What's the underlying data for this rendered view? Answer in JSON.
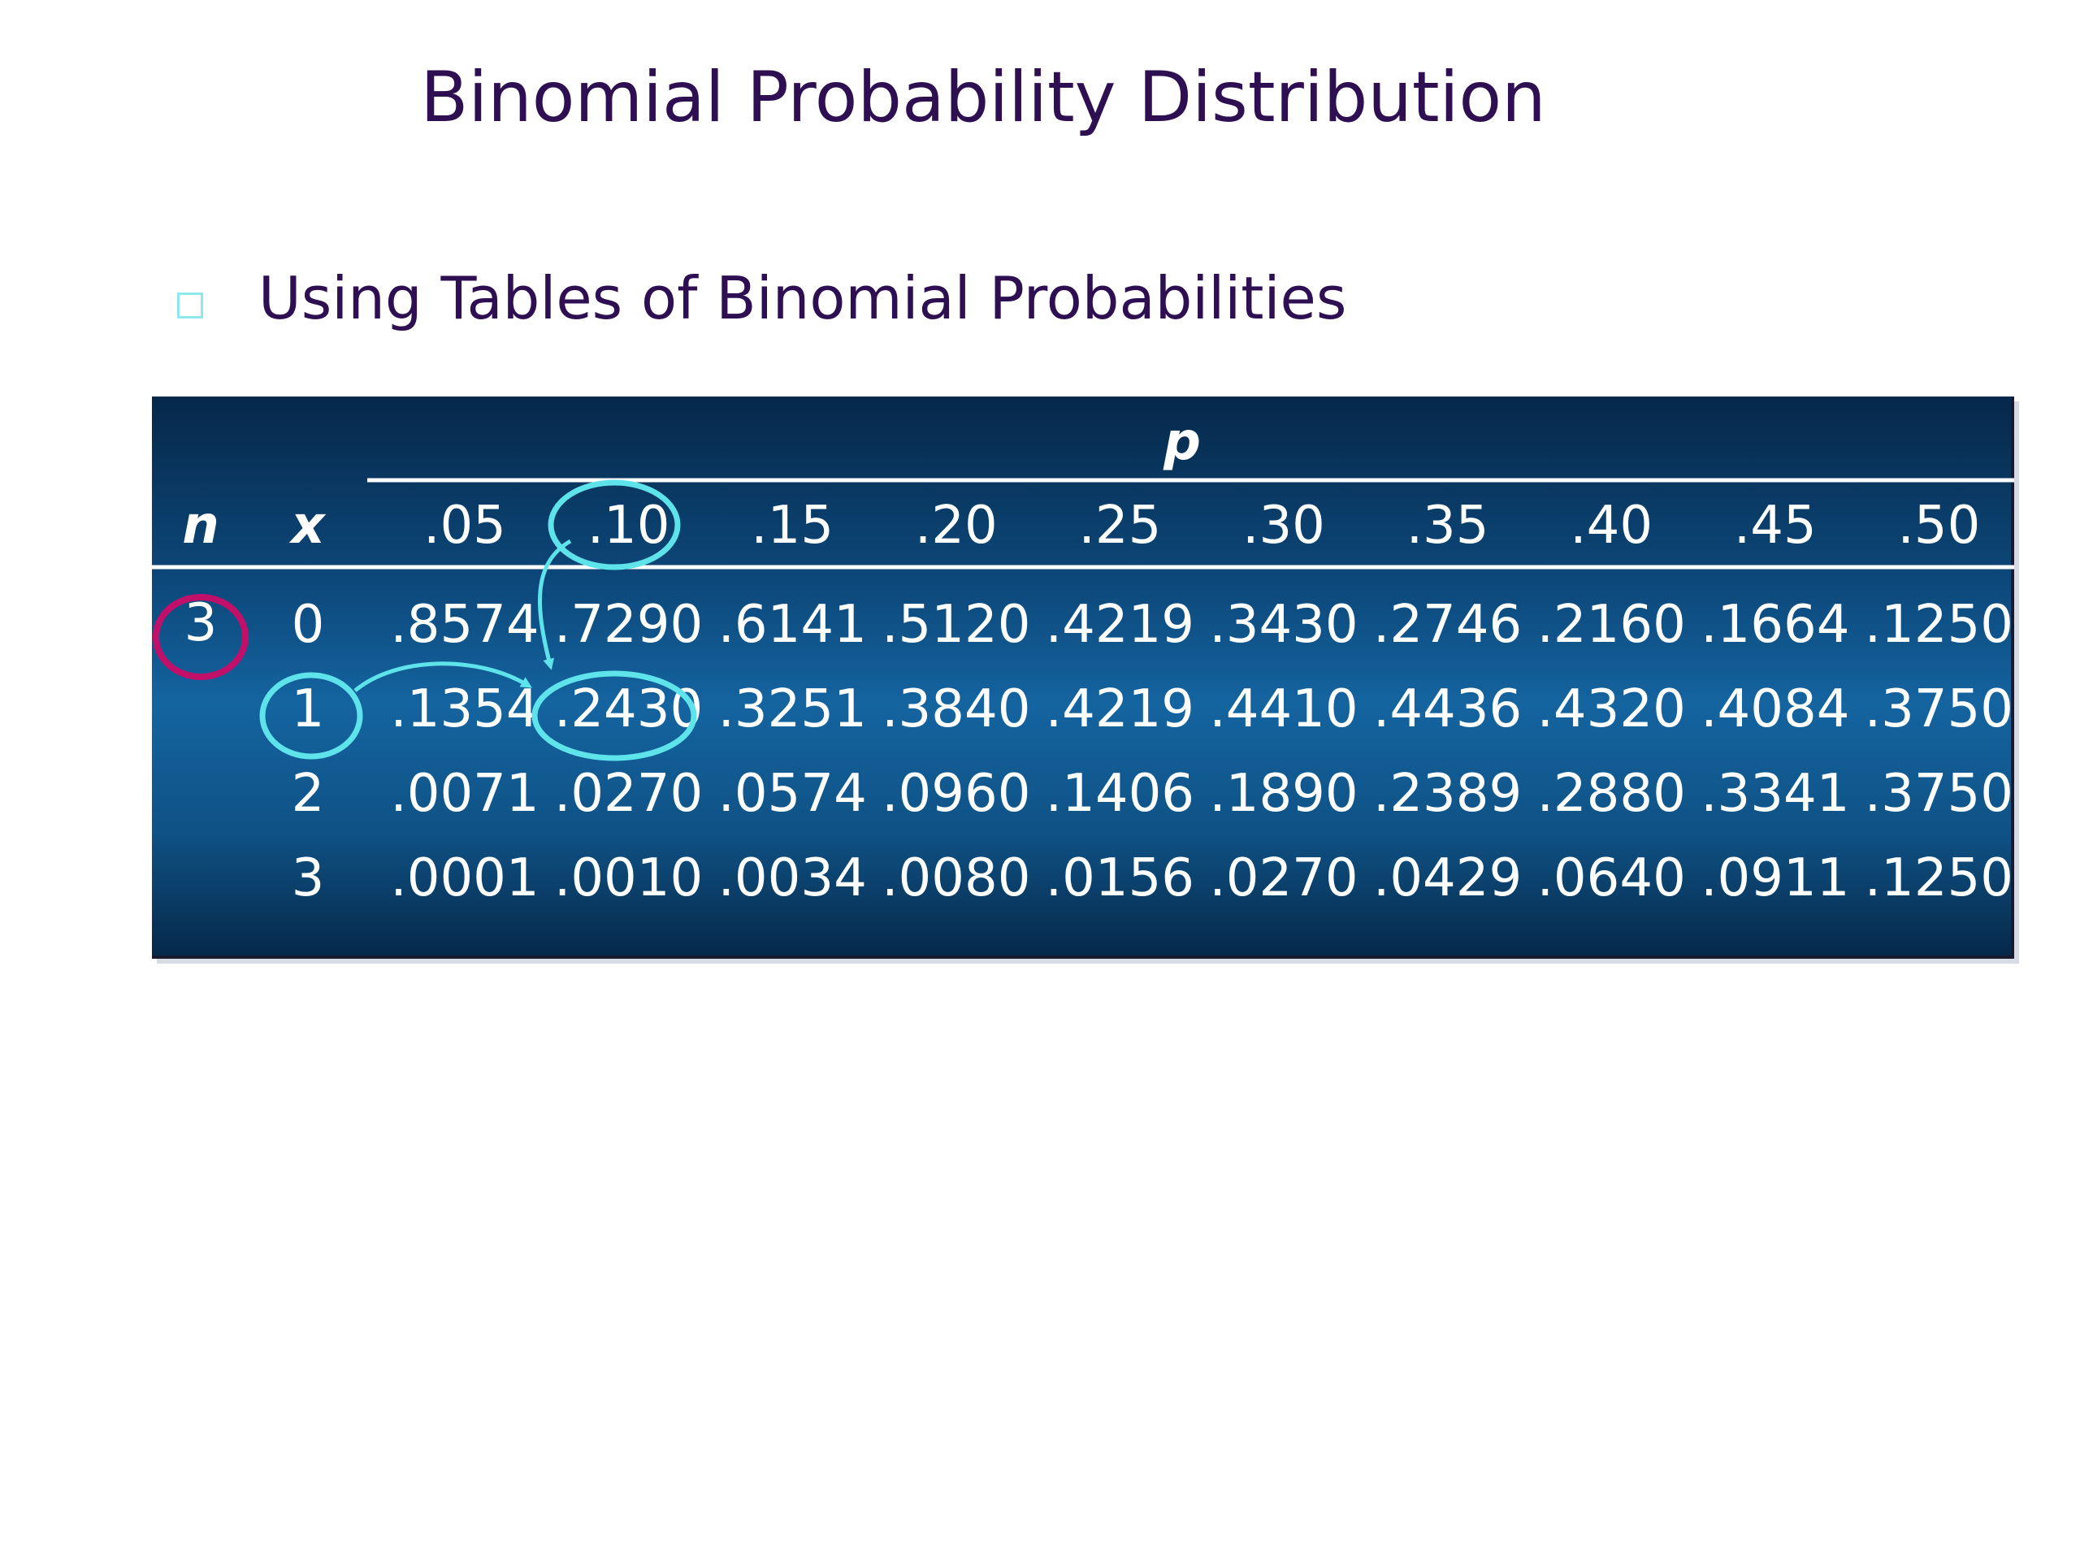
{
  "slide": {
    "title": "Binomial Probability Distribution",
    "bullet": "Using Tables of Binomial Probabilities"
  },
  "table": {
    "p_label": "p",
    "n_label": "n",
    "x_label": "x",
    "n_value": "3",
    "p_headers": [
      ".05",
      ".10",
      ".15",
      ".20",
      ".25",
      ".30",
      ".35",
      ".40",
      ".45",
      ".50"
    ],
    "rows": [
      {
        "x": "0",
        "values": [
          ".8574",
          ".7290",
          ".6141",
          ".5120",
          ".4219",
          ".3430",
          ".2746",
          ".2160",
          ".1664",
          ".1250"
        ]
      },
      {
        "x": "1",
        "values": [
          ".1354",
          ".2430",
          ".3251",
          ".3840",
          ".4219",
          ".4410",
          ".4436",
          ".4320",
          ".4084",
          ".3750"
        ]
      },
      {
        "x": "2",
        "values": [
          ".0071",
          ".0270",
          ".0574",
          ".0960",
          ".1406",
          ".1890",
          ".2389",
          ".2880",
          ".3341",
          ".3750"
        ]
      },
      {
        "x": "3",
        "values": [
          ".0001",
          ".0010",
          ".0034",
          ".0080",
          ".0156",
          ".0270",
          ".0429",
          ".0640",
          ".0911",
          ".1250"
        ]
      }
    ],
    "highlight_color": "#5ee3ea",
    "n_circle_color": "#c0106a",
    "header_line_color": "#ffffff"
  }
}
